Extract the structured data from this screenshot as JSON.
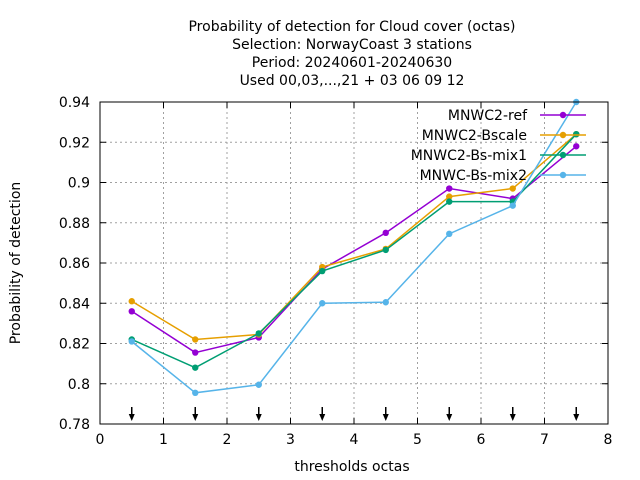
{
  "chart_data": {
    "type": "line",
    "title": [
      "Probability of detection  for Cloud cover (octas)",
      "Selection: NorwayCoast      3 stations",
      "Period: 20240601-20240630",
      "Used 00,03,...,21 + 03 06 09 12"
    ],
    "xlabel": "thresholds octas",
    "ylabel": "Probability of detection",
    "xlim": [
      0,
      8
    ],
    "ylim": [
      0.78,
      0.94
    ],
    "xticks": [
      0,
      1,
      2,
      3,
      4,
      5,
      6,
      7,
      8
    ],
    "yticks": [
      0.78,
      0.8,
      0.82,
      0.84,
      0.86,
      0.88,
      0.9,
      0.92,
      0.94
    ],
    "xtick_labels": [
      "0",
      "1",
      "2",
      "3",
      "4",
      "5",
      "6",
      "7",
      "8"
    ],
    "ytick_labels": [
      "0.78",
      "0.8",
      "0.82",
      "0.84",
      "0.86",
      "0.88",
      "0.9",
      "0.92",
      "0.94"
    ],
    "grid": true,
    "legend_position": "top-right",
    "x": [
      0.5,
      1.5,
      2.5,
      3.5,
      4.5,
      5.5,
      6.5,
      7.5
    ],
    "markers_at_bottom": [
      0.5,
      1.5,
      2.5,
      3.5,
      4.5,
      5.5,
      6.5,
      7.5
    ],
    "series": [
      {
        "name": "MNWC2-ref",
        "color": "#9400d3",
        "values": [
          0.836,
          0.8155,
          0.823,
          0.857,
          0.875,
          0.897,
          0.892,
          0.918
        ]
      },
      {
        "name": "MNWC2-Bscale",
        "color": "#e69f00",
        "values": [
          0.841,
          0.822,
          0.8245,
          0.858,
          0.867,
          0.893,
          0.897,
          0.924
        ]
      },
      {
        "name": "MNWC2-Bs-mix1",
        "color": "#009e73",
        "values": [
          0.822,
          0.808,
          0.825,
          0.856,
          0.8665,
          0.8905,
          0.8905,
          0.924
        ]
      },
      {
        "name": "MNWC-Bs-mix2",
        "color": "#56b4e9",
        "values": [
          0.821,
          0.7955,
          0.7995,
          0.84,
          0.8405,
          0.8745,
          0.8885,
          0.94
        ]
      }
    ]
  }
}
